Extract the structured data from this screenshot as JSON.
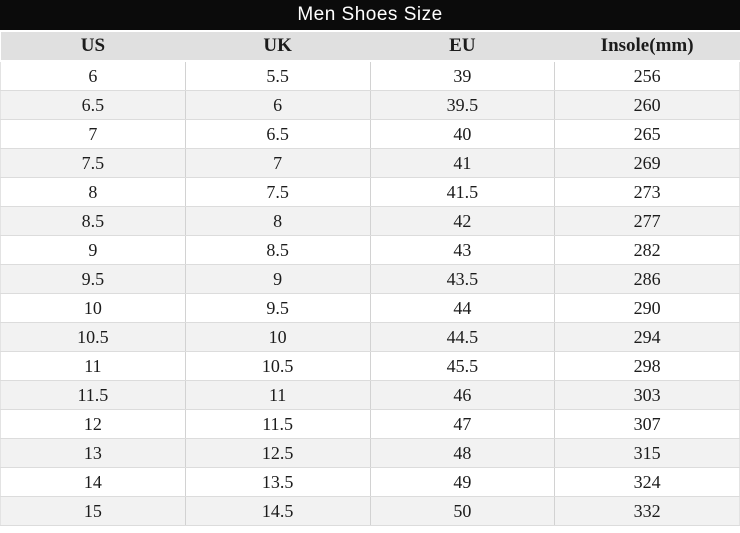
{
  "chart_data": {
    "type": "table",
    "title": "Men Shoes Size",
    "columns": [
      "US",
      "UK",
      "EU",
      "Insole(mm)"
    ],
    "rows": [
      [
        "6",
        "5.5",
        "39",
        "256"
      ],
      [
        "6.5",
        "6",
        "39.5",
        "260"
      ],
      [
        "7",
        "6.5",
        "40",
        "265"
      ],
      [
        "7.5",
        "7",
        "41",
        "269"
      ],
      [
        "8",
        "7.5",
        "41.5",
        "273"
      ],
      [
        "8.5",
        "8",
        "42",
        "277"
      ],
      [
        "9",
        "8.5",
        "43",
        "282"
      ],
      [
        "9.5",
        "9",
        "43.5",
        "286"
      ],
      [
        "10",
        "9.5",
        "44",
        "290"
      ],
      [
        "10.5",
        "10",
        "44.5",
        "294"
      ],
      [
        "11",
        "10.5",
        "45.5",
        "298"
      ],
      [
        "11.5",
        "11",
        "46",
        "303"
      ],
      [
        "12",
        "11.5",
        "47",
        "307"
      ],
      [
        "13",
        "12.5",
        "48",
        "315"
      ],
      [
        "14",
        "13.5",
        "49",
        "324"
      ],
      [
        "15",
        "14.5",
        "50",
        "332"
      ]
    ]
  },
  "colors": {
    "title_bg": "#0b0b0b",
    "title_text": "#ffffff",
    "header_bg": "#e0e0e0",
    "row_alt_bg": "#f2f2f2",
    "border_vertical": "#d2d2d2",
    "border_horizontal": "#dcdcdc",
    "text": "#1c1c1c"
  }
}
